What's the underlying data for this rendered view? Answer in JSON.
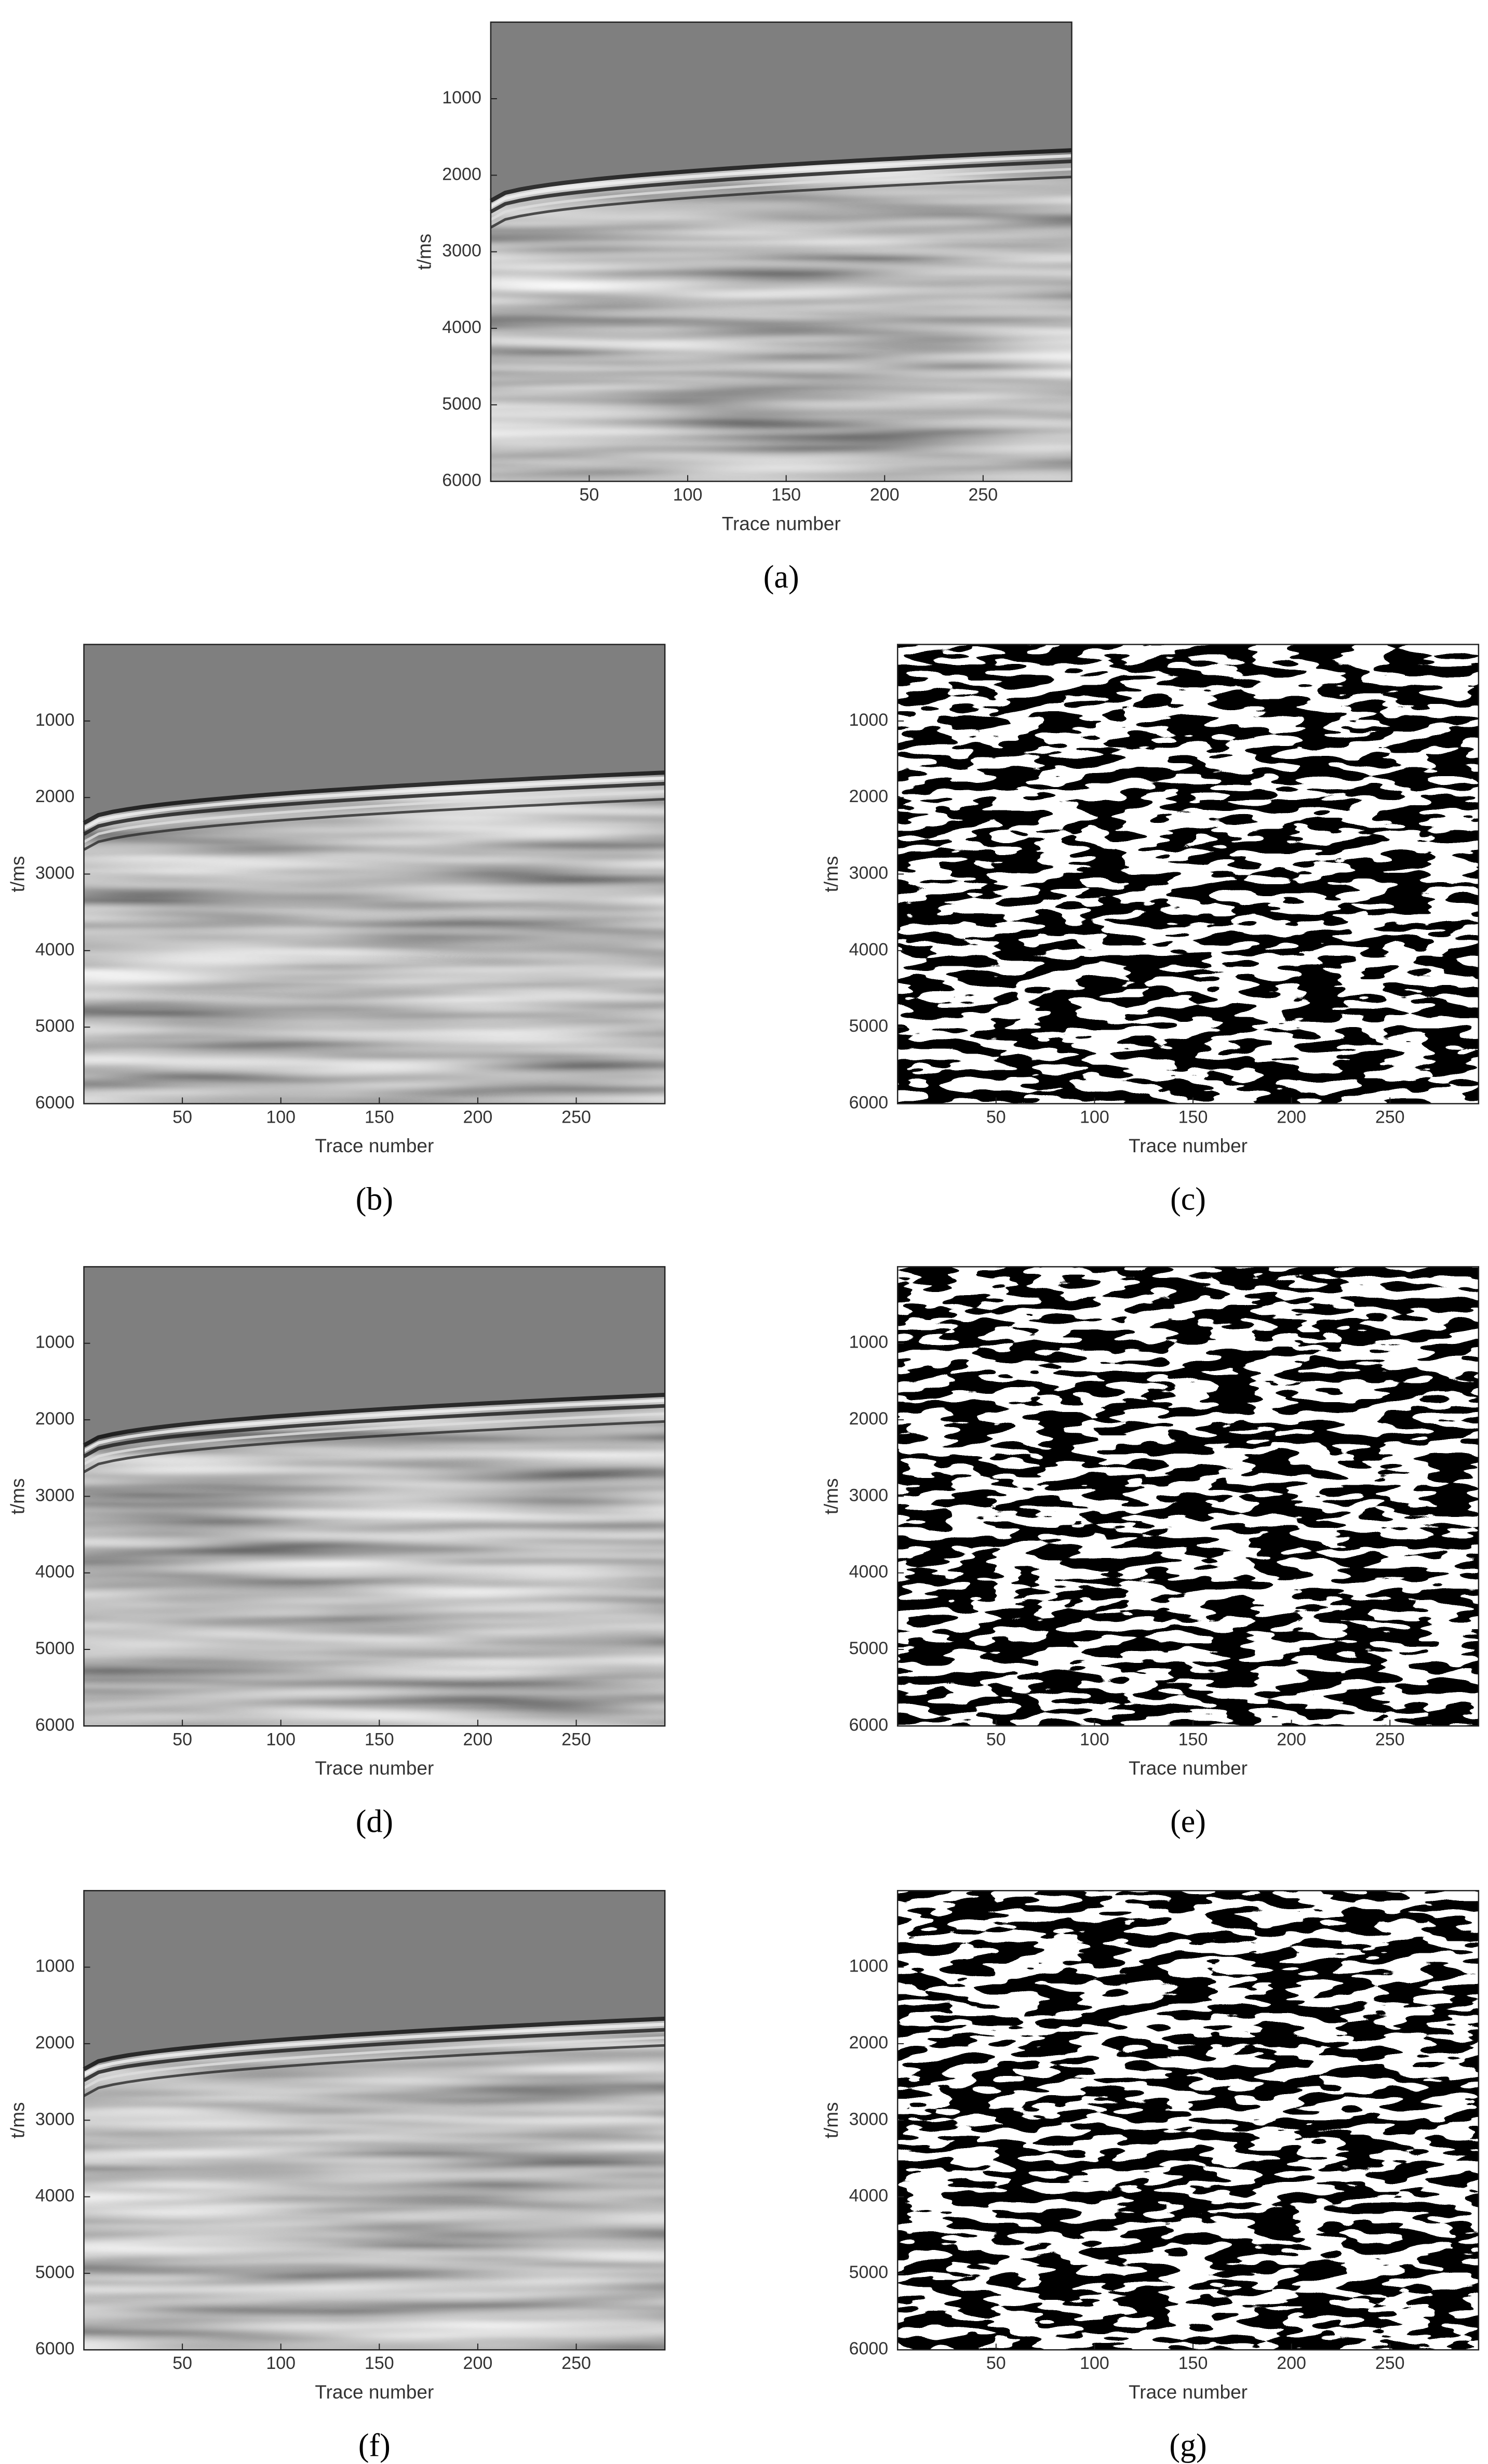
{
  "chart_data": [
    {
      "type": "heatmap",
      "colormap": "gray",
      "caption": "(a)",
      "xlabel": "Trace number",
      "ylabel": "t/ms",
      "xlim": [
        0,
        295
      ],
      "xticks": [
        50,
        100,
        150,
        200,
        250
      ],
      "ylim": [
        6000,
        0
      ],
      "yticks": [
        1000,
        2000,
        3000,
        4000,
        5000,
        6000
      ]
    },
    {
      "type": "heatmap",
      "colormap": "gray",
      "caption": "(b)",
      "xlabel": "Trace number",
      "ylabel": "t/ms",
      "xlim": [
        0,
        295
      ],
      "xticks": [
        50,
        100,
        150,
        200,
        250
      ],
      "ylim": [
        6000,
        0
      ],
      "yticks": [
        1000,
        2000,
        3000,
        4000,
        5000,
        6000
      ]
    },
    {
      "type": "heatmap",
      "colormap": "binary",
      "caption": "(c)",
      "xlabel": "Trace number",
      "ylabel": "t/ms",
      "xlim": [
        0,
        295
      ],
      "xticks": [
        50,
        100,
        150,
        200,
        250
      ],
      "ylim": [
        6000,
        0
      ],
      "yticks": [
        1000,
        2000,
        3000,
        4000,
        5000,
        6000
      ]
    },
    {
      "type": "heatmap",
      "colormap": "gray",
      "caption": "(d)",
      "xlabel": "Trace number",
      "ylabel": "t/ms",
      "xlim": [
        0,
        295
      ],
      "xticks": [
        50,
        100,
        150,
        200,
        250
      ],
      "ylim": [
        6000,
        0
      ],
      "yticks": [
        1000,
        2000,
        3000,
        4000,
        5000,
        6000
      ]
    },
    {
      "type": "heatmap",
      "colormap": "binary",
      "caption": "(e)",
      "xlabel": "Trace number",
      "ylabel": "t/ms",
      "xlim": [
        0,
        295
      ],
      "xticks": [
        50,
        100,
        150,
        200,
        250
      ],
      "ylim": [
        6000,
        0
      ],
      "yticks": [
        1000,
        2000,
        3000,
        4000,
        5000,
        6000
      ]
    },
    {
      "type": "heatmap",
      "colormap": "gray",
      "caption": "(f)",
      "xlabel": "Trace number",
      "ylabel": "t/ms",
      "xlim": [
        0,
        295
      ],
      "xticks": [
        50,
        100,
        150,
        200,
        250
      ],
      "ylim": [
        6000,
        0
      ],
      "yticks": [
        1000,
        2000,
        3000,
        4000,
        5000,
        6000
      ]
    },
    {
      "type": "heatmap",
      "colormap": "binary",
      "caption": "(g)",
      "xlabel": "Trace number",
      "ylabel": "t/ms",
      "xlim": [
        0,
        295
      ],
      "xticks": [
        50,
        100,
        150,
        200,
        250
      ],
      "ylim": [
        6000,
        0
      ],
      "yticks": [
        1000,
        2000,
        3000,
        4000,
        5000,
        6000
      ]
    }
  ]
}
